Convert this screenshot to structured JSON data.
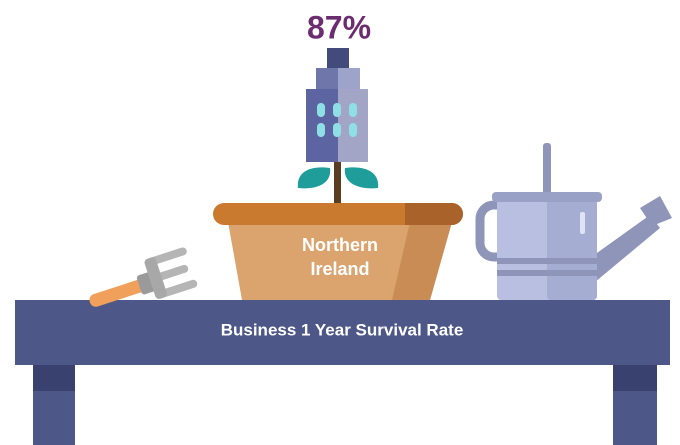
{
  "stat": "87%",
  "pot_label": [
    "Northern",
    "Ireland"
  ],
  "table_label": "Business 1 Year Survival Rate"
}
